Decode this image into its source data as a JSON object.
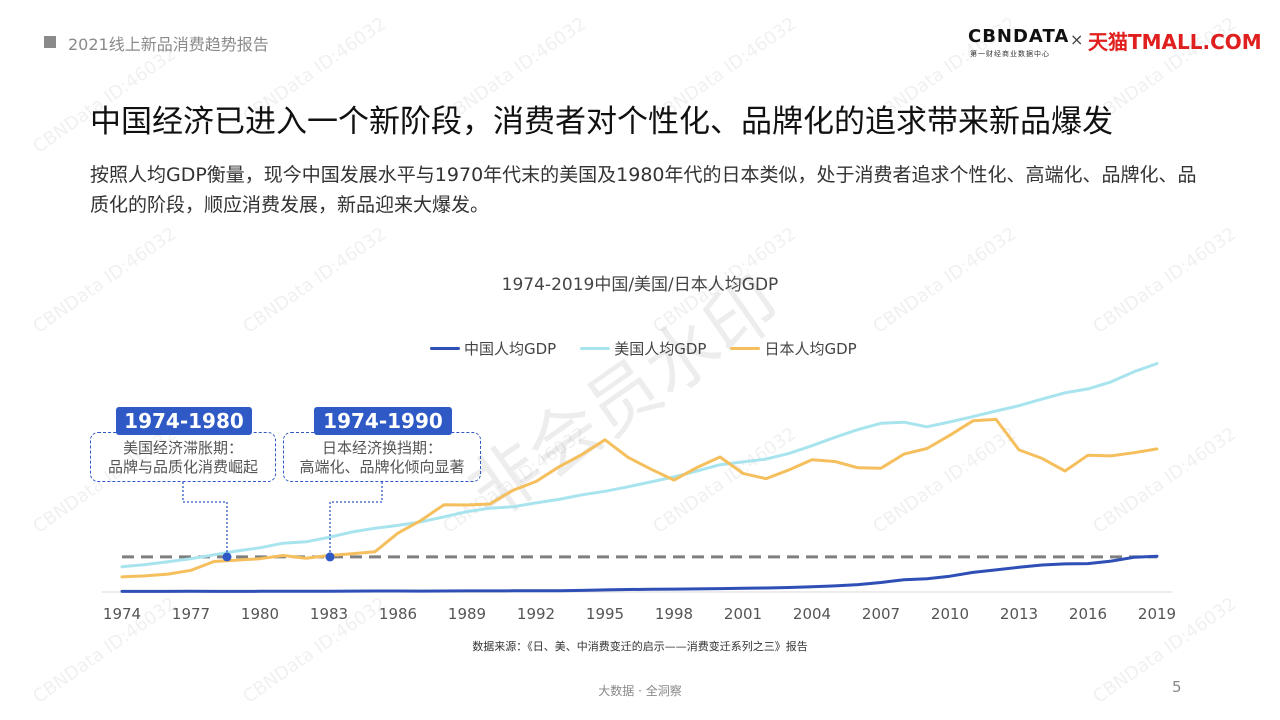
{
  "header": {
    "report_title": "2021线上新品消费趋势报告"
  },
  "logo": {
    "cbn": "CBNDATA",
    "cbn_sub": "第一财经商业数据中心",
    "times": "×",
    "tmall": "天猫TMALL.COM"
  },
  "title": "中国经济已进入一个新阶段，消费者对个性化、品牌化的追求带来新品爆发",
  "subtitle": "按照人均GDP衡量，现今中国发展水平与1970年代末的美国及1980年代的日本类似，处于消费者追求个性化、高端化、品牌化、品质化的阶段，顺应消费发展，新品迎来大爆发。",
  "annotations": [
    {
      "tag": "1974-1980",
      "line1": "美国经济滞胀期：",
      "line2": "品牌与品质化消费崛起"
    },
    {
      "tag": "1974-1990",
      "line1": "日本经济换挡期：",
      "line2": "高端化、品牌化倾向显著"
    }
  ],
  "source": "数据来源：《日、美、中消费变迁的启示——消费变迁系列之三》报告",
  "footer": "大数据 · 全洞察",
  "page_number": "5",
  "watermark": "CBNData ID:46032",
  "big_watermark": "非会员水印",
  "colors": {
    "china": "#2e4fb5",
    "usa": "#a8e4ee",
    "japan": "#f5bf5e",
    "accent": "#2f59c5"
  },
  "chart_data": {
    "type": "line",
    "title": "1974-2019中国/美国/日本人均GDP",
    "x_ticks": [
      1974,
      1977,
      1980,
      1983,
      1986,
      1989,
      1992,
      1995,
      1998,
      2001,
      2004,
      2007,
      2010,
      2013,
      2016,
      2019
    ],
    "x": [
      1974,
      1975,
      1976,
      1977,
      1978,
      1979,
      1980,
      1981,
      1982,
      1983,
      1984,
      1985,
      1986,
      1987,
      1988,
      1989,
      1990,
      1991,
      1992,
      1993,
      1994,
      1995,
      1996,
      1997,
      1998,
      1999,
      2000,
      2001,
      2002,
      2003,
      2004,
      2005,
      2006,
      2007,
      2008,
      2009,
      2010,
      2011,
      2012,
      2013,
      2014,
      2015,
      2016,
      2017,
      2018,
      2019
    ],
    "xlim": [
      1974,
      2019
    ],
    "ylim": [
      0,
      65000
    ],
    "reference_level": 10000,
    "legend_position": "top",
    "series": [
      {
        "name": "中国人均GDP",
        "color": "#2e4fb5",
        "values": [
          160,
          180,
          170,
          190,
          160,
          180,
          195,
          200,
          200,
          210,
          250,
          290,
          280,
          250,
          280,
          310,
          320,
          330,
          360,
          380,
          470,
          610,
          700,
          780,
          830,
          870,
          960,
          1050,
          1150,
          1290,
          1510,
          1750,
          2100,
          2700,
          3500,
          3800,
          4500,
          5600,
          6300,
          7050,
          7700,
          8000,
          8100,
          8800,
          9900,
          10200
        ]
      },
      {
        "name": "美国人均GDP",
        "color": "#a8e4ee",
        "values": [
          7200,
          7800,
          8600,
          9500,
          10600,
          11700,
          12600,
          13900,
          14300,
          15600,
          17100,
          18200,
          19000,
          20000,
          21400,
          22900,
          23900,
          24300,
          25400,
          26400,
          27700,
          28700,
          30000,
          31400,
          32800,
          34500,
          36300,
          37100,
          37900,
          39500,
          41700,
          44100,
          46300,
          48100,
          48400,
          47100,
          48500,
          50000,
          51600,
          53100,
          55000,
          56800,
          57900,
          59900,
          62800,
          65100
        ]
      },
      {
        "name": "日本人均GDP",
        "color": "#f5bf5e",
        "values": [
          4300,
          4600,
          5100,
          6200,
          8700,
          9100,
          9500,
          10400,
          9600,
          10400,
          10900,
          11500,
          16800,
          20400,
          24900,
          24800,
          25100,
          29000,
          31500,
          35700,
          39200,
          43400,
          38400,
          35000,
          31900,
          35500,
          38500,
          33800,
          32300,
          34800,
          37700,
          37200,
          35400,
          35300,
          39300,
          40900,
          44700,
          48800,
          49200,
          40500,
          38100,
          34500,
          39000,
          38800,
          39700,
          40800
        ]
      }
    ],
    "title_xlabel": "",
    "title_ylabel": ""
  }
}
